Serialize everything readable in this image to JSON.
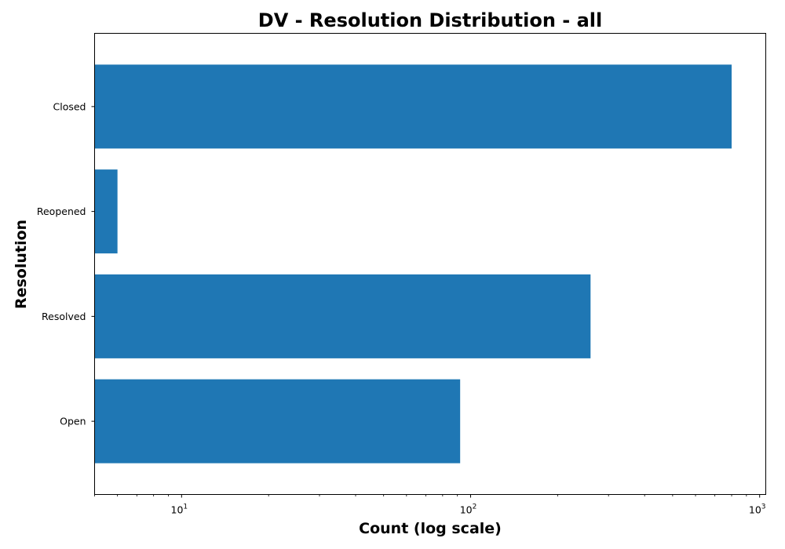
{
  "chart_data": {
    "type": "bar",
    "orientation": "horizontal",
    "title": "DV - Resolution Distribution - all",
    "xlabel": "Count (log scale)",
    "ylabel": "Resolution",
    "x_scale": "log",
    "xlim": [
      5,
      1050
    ],
    "x_major_ticks": [
      {
        "value": 10,
        "base": "10",
        "exp": "1"
      },
      {
        "value": 100,
        "base": "10",
        "exp": "2"
      },
      {
        "value": 1000,
        "base": "10",
        "exp": "3"
      }
    ],
    "x_minor_ticks": [
      5,
      6,
      7,
      8,
      9,
      20,
      30,
      40,
      50,
      60,
      70,
      80,
      90,
      200,
      300,
      400,
      500,
      600,
      700,
      800,
      900
    ],
    "categories": [
      "Closed",
      "Reopened",
      "Resolved",
      "Open"
    ],
    "values": [
      800,
      6,
      260,
      92
    ],
    "bar_color": "#1f77b4",
    "grid": false,
    "legend": "none"
  }
}
